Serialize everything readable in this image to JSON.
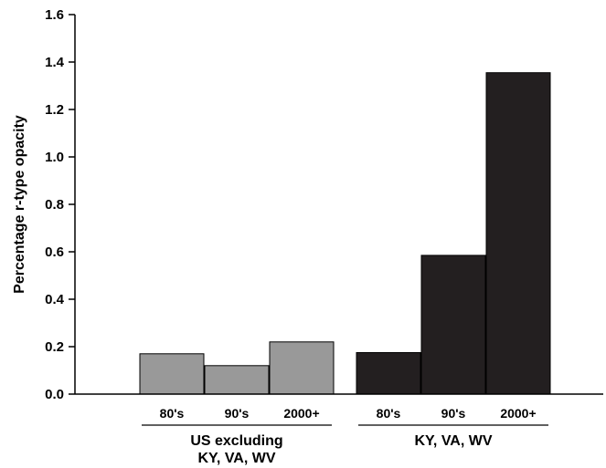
{
  "chart_data": {
    "type": "bar",
    "ylabel": "Percentage r-type opacity",
    "ylim": [
      0,
      1.6
    ],
    "yticks": [
      "0.0",
      "0.2",
      "0.4",
      "0.6",
      "0.8",
      "1.0",
      "1.2",
      "1.4",
      "1.6"
    ],
    "grid": false,
    "legend": "none",
    "groups": [
      {
        "name": "US excluding",
        "name_line2": "KY, VA, WV",
        "color": "#999999",
        "categories": [
          "80's",
          "90's",
          "2000+"
        ],
        "values": [
          0.17,
          0.12,
          0.22
        ]
      },
      {
        "name": "KY, VA, WV",
        "color": "#231f20",
        "categories": [
          "80's",
          "90's",
          "2000+"
        ],
        "values": [
          0.175,
          0.585,
          1.355
        ]
      }
    ]
  }
}
